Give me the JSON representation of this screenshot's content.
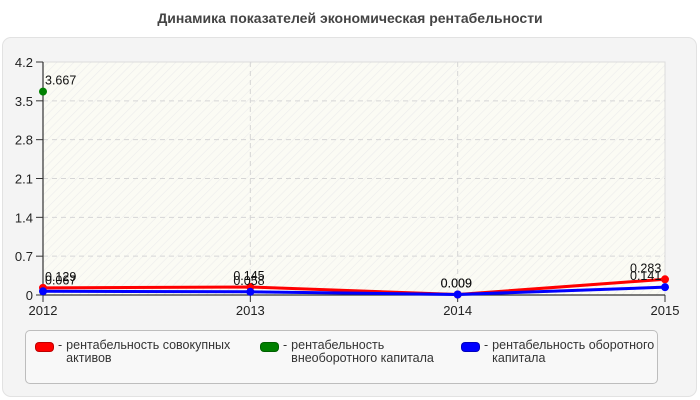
{
  "title": "Динамика показателей экономическая рентабельности",
  "chart_data": {
    "type": "line",
    "title": "Динамика показателей экономическая рентабельности",
    "xlabel": "",
    "ylabel": "",
    "categories": [
      "2012",
      "2013",
      "2014",
      "2015"
    ],
    "ylim": [
      0,
      4.2
    ],
    "yticks": [
      "0",
      "0.7",
      "1.4",
      "2.1",
      "2.8",
      "3.5",
      "4.2"
    ],
    "grid": true,
    "legend_position": "bottom",
    "series": [
      {
        "name": "рентабельность совокупных активов",
        "color": "#ff0000",
        "values": [
          0.129,
          0.145,
          0.009,
          0.283
        ],
        "labels": [
          "0.129",
          "0.145",
          "0.009",
          "0.283"
        ]
      },
      {
        "name": "рентабельность внеоборотного капитала",
        "color": "#008000",
        "values": [
          3.667,
          null,
          null,
          null
        ],
        "labels": [
          "3.667",
          "",
          "",
          ""
        ]
      },
      {
        "name": "рентабельность оборотного капитала",
        "color": "#0000ff",
        "values": [
          0.067,
          0.058,
          0.009,
          0.141
        ],
        "labels": [
          "0.067",
          "0.058",
          "0.009",
          "0.141"
        ]
      }
    ]
  },
  "legend": {
    "items": [
      {
        "label": "рентабельность совокупных активов",
        "color": "#ff0000"
      },
      {
        "label": "рентабельность внеоборотного капитала",
        "color": "#008000"
      },
      {
        "label": "рентабельность оборотного капитала",
        "color": "#0000ff"
      }
    ],
    "separator": "-"
  }
}
